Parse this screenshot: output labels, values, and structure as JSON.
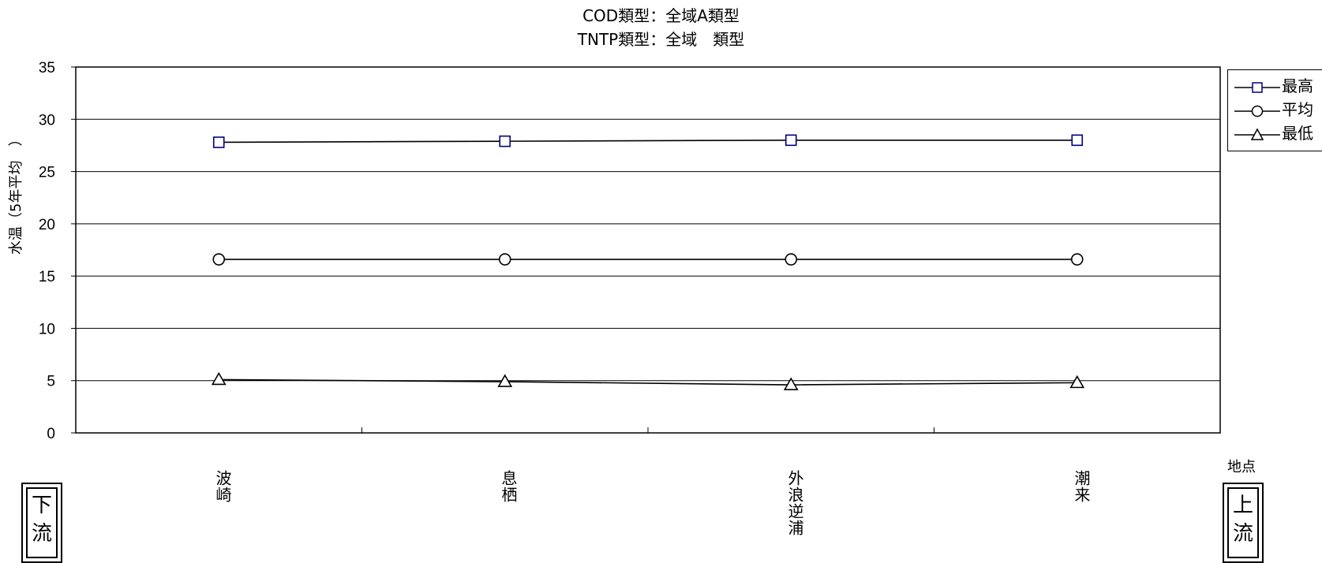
{
  "chart_data": {
    "type": "line",
    "title": "COD類型：全域A類型",
    "subtitle": "TNTP類型：全域　類型",
    "ylabel": "水温（5年平均　）",
    "xlabel": "地点",
    "categories": [
      "波崎",
      "息栖",
      "外浪逆浦",
      "潮来"
    ],
    "ylim": [
      0,
      35
    ],
    "yticks": [
      0,
      5,
      10,
      15,
      20,
      25,
      30,
      35
    ],
    "grid": true,
    "legend_position": "right",
    "series": [
      {
        "name": "最高",
        "marker": "square",
        "color": "#000080",
        "values": [
          27.8,
          27.9,
          28.0,
          28.0
        ]
      },
      {
        "name": "平均",
        "marker": "circle",
        "color": "#000000",
        "values": [
          16.6,
          16.6,
          16.6,
          16.6
        ]
      },
      {
        "name": "最低",
        "marker": "triangle",
        "color": "#000000",
        "values": [
          5.1,
          4.9,
          4.6,
          4.8
        ]
      }
    ]
  },
  "direction": {
    "downstream": "下流",
    "upstream": "上流"
  }
}
